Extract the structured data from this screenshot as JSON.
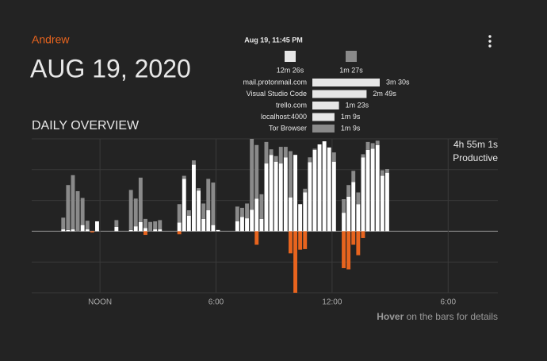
{
  "header": {
    "user": "Andrew",
    "date": "AUG 19, 2020",
    "section": "DAILY OVERVIEW"
  },
  "tooltip": {
    "time": "Aug 19, 11:45 PM",
    "legend": [
      {
        "label": "12m 26s",
        "color": "#e6e6e6"
      },
      {
        "label": "1m 27s",
        "color": "#8a8a8a"
      }
    ],
    "rows": [
      {
        "name": "mail.protonmail.com",
        "value": 210,
        "label": "3m 30s",
        "color": "#e6e6e6"
      },
      {
        "name": "Visual Studio Code",
        "value": 169,
        "label": "2m 49s",
        "color": "#e6e6e6"
      },
      {
        "name": "trello.com",
        "value": 83,
        "label": "1m 23s",
        "color": "#e6e6e6"
      },
      {
        "name": "localhost:4000",
        "value": 69,
        "label": "1m 9s",
        "color": "#e6e6e6"
      },
      {
        "name": "Tor Browser",
        "value": 69,
        "label": "1m 9s",
        "color": "#8a8a8a"
      }
    ]
  },
  "summary": {
    "total": "4h 55m 1s",
    "label": "Productive"
  },
  "footer": {
    "bold": "Hover",
    "text": " on the bars for details"
  },
  "chart_data": {
    "type": "bar",
    "x": [
      10,
      10.25,
      10.5,
      10.75,
      11,
      11.25,
      11.5,
      11.75,
      12.75,
      13.5,
      13.75,
      14,
      14.25,
      14.5,
      14.75,
      15,
      16,
      16.25,
      16.5,
      16.75,
      17,
      17.25,
      17.5,
      17.75,
      18,
      19,
      19.25,
      19.5,
      19.75,
      20,
      20.25,
      20.5,
      20.75,
      21,
      21.25,
      21.5,
      21.75,
      22,
      22.25,
      22.5,
      22.75,
      23,
      23.25,
      23.5,
      23.75,
      24,
      24.5,
      24.75,
      25,
      25.25,
      25.5,
      25.75,
      26,
      26.25,
      26.5,
      26.75
    ],
    "series": [
      {
        "color": "#ffffff",
        "values": [
          0.3,
          0.2,
          0.3,
          0,
          1.0,
          0.3,
          0,
          1.6,
          0.7,
          0.2,
          0.8,
          1.5,
          0.5,
          0,
          0.3,
          0.3,
          1.4,
          8.5,
          2.5,
          10.8,
          6.6,
          2.0,
          3.4,
          1.0,
          0.2,
          1.6,
          2.3,
          2.1,
          3.5,
          5.3,
          2.0,
          11.0,
          12.4,
          11.3,
          11.0,
          12.0,
          5.5,
          12.4,
          4.4,
          6.3,
          11.2,
          13.2,
          14.1,
          14.6,
          13.6,
          11.3,
          3.0,
          5.6,
          8.0,
          4.4,
          12.0,
          13.2,
          13.4,
          14.0,
          9.0,
          9.5
        ]
      },
      {
        "color": "#8a8a8a",
        "values": [
          1.9,
          7.3,
          8.8,
          6.5,
          4.4,
          1.4,
          0,
          0,
          1.1,
          6.5,
          4.5,
          7.2,
          1.5,
          1.5,
          1.3,
          1.5,
          3.0,
          0.5,
          0.9,
          0.7,
          0.4,
          2.5,
          5.1,
          6.9,
          0,
          2.4,
          1.5,
          2.4,
          11.5,
          8.7,
          4.0,
          3.5,
          0.9,
          0.9,
          2.7,
          1.7,
          7.5,
          0,
          0,
          0.6,
          0.8,
          0.2,
          0,
          0,
          0,
          1.5,
          2.2,
          1.9,
          1.8,
          1.9,
          0.5,
          1.3,
          0.9,
          0.7,
          0.9,
          0.6
        ]
      },
      {
        "color": "#e8641e",
        "values": [
          0,
          0,
          0,
          0,
          0,
          0,
          -0.2,
          0,
          0,
          0,
          0,
          0,
          -0.6,
          0,
          0,
          0,
          -0.5,
          0,
          0,
          0,
          0,
          0,
          0,
          0,
          0,
          0,
          0,
          0,
          0,
          -2.2,
          0,
          0,
          0,
          0,
          0,
          0,
          -3.6,
          -10,
          -3.0,
          -2.9,
          0,
          0,
          0,
          0,
          0,
          0,
          -6.0,
          -6.2,
          -2.2,
          -3.9,
          -1.1,
          0,
          0,
          0,
          0,
          0
        ]
      }
    ],
    "xlim": [
      8.47,
      32.57
    ],
    "xticks": [
      {
        "value": 12,
        "label": "NOON"
      },
      {
        "value": 18,
        "label": "6:00"
      },
      {
        "value": 24,
        "label": "12:00"
      },
      {
        "value": 30,
        "label": "6:00"
      }
    ],
    "ylim": [
      -10,
      15
    ],
    "yticks": [
      -10,
      -5,
      0,
      5,
      10,
      15
    ],
    "grid": true
  }
}
